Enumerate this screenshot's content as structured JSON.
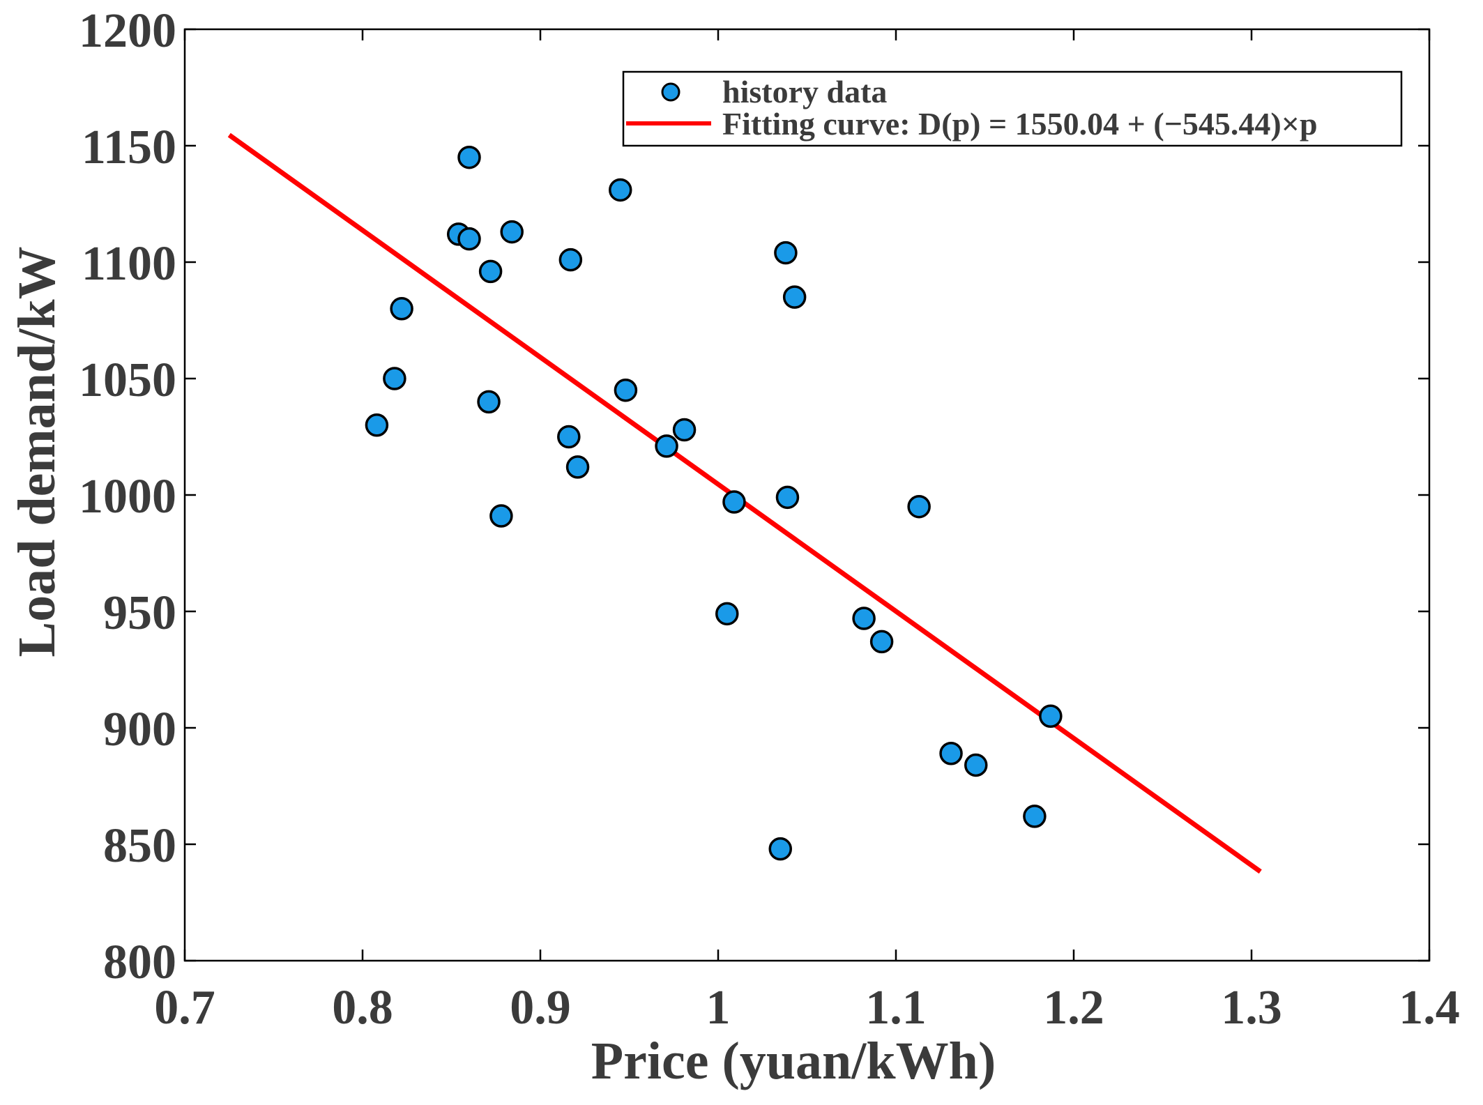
{
  "chart_data": {
    "type": "scatter",
    "xlabel": "Price (yuan/kWh)",
    "ylabel": "Load demand/kW",
    "xlim": [
      0.7,
      1.4
    ],
    "ylim": [
      800,
      1200
    ],
    "xticks": [
      0.7,
      0.8,
      0.9,
      1.0,
      1.1,
      1.2,
      1.3,
      1.4
    ],
    "xtick_labels": [
      "0.7",
      "0.8",
      "0.9",
      "1",
      "1.1",
      "1.2",
      "1.3",
      "1.4"
    ],
    "yticks": [
      800,
      850,
      900,
      950,
      1000,
      1050,
      1100,
      1150,
      1200
    ],
    "ytick_labels": [
      "800",
      "850",
      "900",
      "950",
      "1000",
      "1050",
      "1100",
      "1150",
      "1200"
    ],
    "grid": false,
    "legend_position": "top-right",
    "series": [
      {
        "name": "history data",
        "kind": "scatter",
        "color": "#1a9ae8",
        "edge_color": "#000000",
        "points": [
          {
            "x": 0.808,
            "y": 1030
          },
          {
            "x": 0.818,
            "y": 1050
          },
          {
            "x": 0.822,
            "y": 1080
          },
          {
            "x": 0.854,
            "y": 1112
          },
          {
            "x": 0.86,
            "y": 1110
          },
          {
            "x": 0.86,
            "y": 1145
          },
          {
            "x": 0.871,
            "y": 1040
          },
          {
            "x": 0.872,
            "y": 1096
          },
          {
            "x": 0.878,
            "y": 991
          },
          {
            "x": 0.884,
            "y": 1113
          },
          {
            "x": 0.916,
            "y": 1025
          },
          {
            "x": 0.917,
            "y": 1101
          },
          {
            "x": 0.921,
            "y": 1012
          },
          {
            "x": 0.945,
            "y": 1131
          },
          {
            "x": 0.948,
            "y": 1045
          },
          {
            "x": 0.971,
            "y": 1021
          },
          {
            "x": 0.981,
            "y": 1028
          },
          {
            "x": 1.005,
            "y": 949
          },
          {
            "x": 1.009,
            "y": 997
          },
          {
            "x": 1.035,
            "y": 848
          },
          {
            "x": 1.038,
            "y": 1104
          },
          {
            "x": 1.039,
            "y": 999
          },
          {
            "x": 1.043,
            "y": 1085
          },
          {
            "x": 1.082,
            "y": 947
          },
          {
            "x": 1.092,
            "y": 937
          },
          {
            "x": 1.113,
            "y": 995
          },
          {
            "x": 1.131,
            "y": 889
          },
          {
            "x": 1.145,
            "y": 884
          },
          {
            "x": 1.178,
            "y": 862
          },
          {
            "x": 1.187,
            "y": 905
          }
        ]
      },
      {
        "name": "Fitting curve",
        "kind": "line",
        "color": "#ff0000",
        "equation": "D(p) = 1550.04 + (−545.44)×p",
        "intercept": 1550.04,
        "slope": -545.44,
        "x_range": [
          0.725,
          1.305
        ]
      }
    ],
    "legend": {
      "entries": [
        {
          "label": "history data"
        },
        {
          "label": "Fitting curve: D(p) = 1550.04 + (−545.44)×p"
        }
      ]
    }
  }
}
